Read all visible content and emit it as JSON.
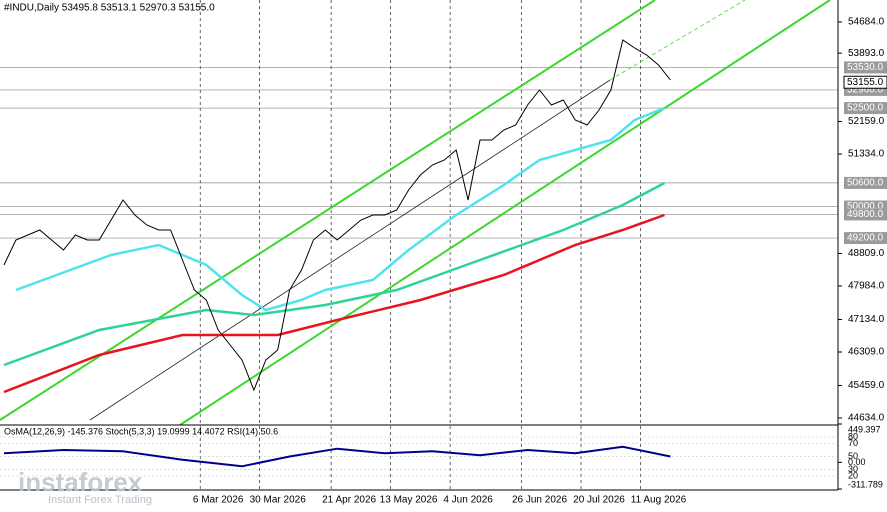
{
  "chart_data": {
    "type": "line",
    "title": "#INDU,Daily  53495.8 53513.1 52970.3 53155.0",
    "categories": [
      null,
      null,
      null,
      null,
      null,
      null,
      null,
      null,
      null,
      null,
      null,
      null,
      null,
      null,
      null,
      null,
      null,
      null,
      "6 Mar 2026",
      null,
      null,
      null,
      null,
      "30 Mar 2026",
      null,
      null,
      null,
      null,
      null,
      "21 Apr 2026",
      null,
      null,
      null,
      null,
      "13 May 2026",
      null,
      null,
      null,
      null,
      "4 Jun 2026",
      null,
      null,
      null,
      null,
      null,
      "26 Jun 2026",
      null,
      null,
      null,
      null,
      "20 Jul 2026",
      null,
      null,
      null,
      null,
      "11 Aug 2026",
      null
    ],
    "series": [
      {
        "color": "#000000",
        "values": [
          48516,
          49151,
          49278,
          49405,
          49151,
          48897,
          49278,
          49151,
          49151,
          49658,
          50166,
          49785,
          49532,
          49405,
          49405,
          48643,
          47882,
          47628,
          46867,
          46486,
          46105,
          45344,
          46105,
          46359,
          47882,
          48389,
          49151,
          49405,
          49151,
          49405,
          49658,
          49785,
          49785,
          49912,
          50420,
          50802,
          51055,
          51182,
          51435,
          50166,
          51689,
          51689,
          51943,
          52070,
          52577,
          52958,
          52577,
          52704,
          52196,
          52070,
          52450,
          52958,
          54227,
          54024,
          53846,
          53592,
          53212
        ]
      }
    ],
    "moving_averages": [
      {
        "color": "#4fe3f0",
        "x": [
          1,
          9,
          13,
          17,
          20,
          22,
          25,
          27,
          31,
          34,
          38,
          42,
          45,
          48,
          51,
          53,
          55.5
        ],
        "values": [
          47882,
          48770,
          49024,
          48516,
          47755,
          47374,
          47628,
          47882,
          48136,
          48897,
          49785,
          50547,
          51182,
          51435,
          51689,
          52196,
          52501
        ]
      },
      {
        "color": "#2ed39a",
        "x": [
          0,
          8,
          17,
          21,
          27,
          33,
          40,
          47,
          52,
          55.5
        ],
        "values": [
          45978,
          46867,
          47374,
          47247,
          47501,
          47882,
          48643,
          49405,
          50039,
          50598
        ]
      },
      {
        "color": "#e8141c",
        "x": [
          0,
          8,
          15,
          23,
          28,
          35,
          42,
          48,
          52,
          55.5
        ],
        "values": [
          45293,
          46232,
          46740,
          46740,
          47120,
          47628,
          48262,
          49024,
          49405,
          49785
        ]
      }
    ],
    "ylim": [
      44456,
      55242
    ],
    "yticks": [
      {
        "value": 54684,
        "label": "54684.0"
      },
      {
        "value": 53893,
        "label": "53893.0"
      },
      {
        "value": 52159,
        "label": "52159.0"
      },
      {
        "value": 51334,
        "label": "51334.0"
      },
      {
        "value": 48809,
        "label": "48809.0"
      },
      {
        "value": 47984,
        "label": "47984.0"
      },
      {
        "value": 47134,
        "label": "47134.0"
      },
      {
        "value": 46309,
        "label": "46309.0"
      },
      {
        "value": 45459,
        "label": "45459.0"
      },
      {
        "value": 44634,
        "label": "44634.0"
      }
    ],
    "levels": [
      {
        "value": 53530,
        "label": "53530.0"
      },
      {
        "value": 52960,
        "label": "52960.0"
      },
      {
        "value": 52500,
        "label": "52500.0"
      },
      {
        "value": 50600,
        "label": "50600.0"
      },
      {
        "value": 50000,
        "label": "50000.0"
      },
      {
        "value": 49800,
        "label": "49800.0"
      },
      {
        "value": 49200,
        "label": "49200.0"
      }
    ],
    "current_price": {
      "value": 53155,
      "label": "53155.0"
    },
    "indicator": {
      "title": "OsMA(12,26,9) -145.376 Stoch(5,3,3) 19.0999 14.4072 RSI(14) 50.6",
      "ylim": [
        0,
        100
      ],
      "yticks": [
        80,
        70,
        50,
        30,
        20
      ],
      "osma_ticks": [
        {
          "value": 449.397,
          "label": "449.397"
        },
        {
          "value": 0,
          "label": "0.00"
        },
        {
          "value": -311.789,
          "label": "-311.789"
        }
      ],
      "osma_lim": [
        -311.789,
        449.397
      ],
      "rsi": {
        "color": "#00008b",
        "x": [
          0,
          5,
          10,
          15,
          20,
          24,
          28,
          32,
          36,
          40,
          44,
          48,
          52,
          56
        ],
        "values": [
          55,
          60,
          58,
          45,
          35,
          50,
          62,
          55,
          58,
          52,
          60,
          55,
          65,
          50
        ]
      }
    },
    "watermark": "instaforex",
    "watermark_sub": "Instant Forex Trading"
  }
}
